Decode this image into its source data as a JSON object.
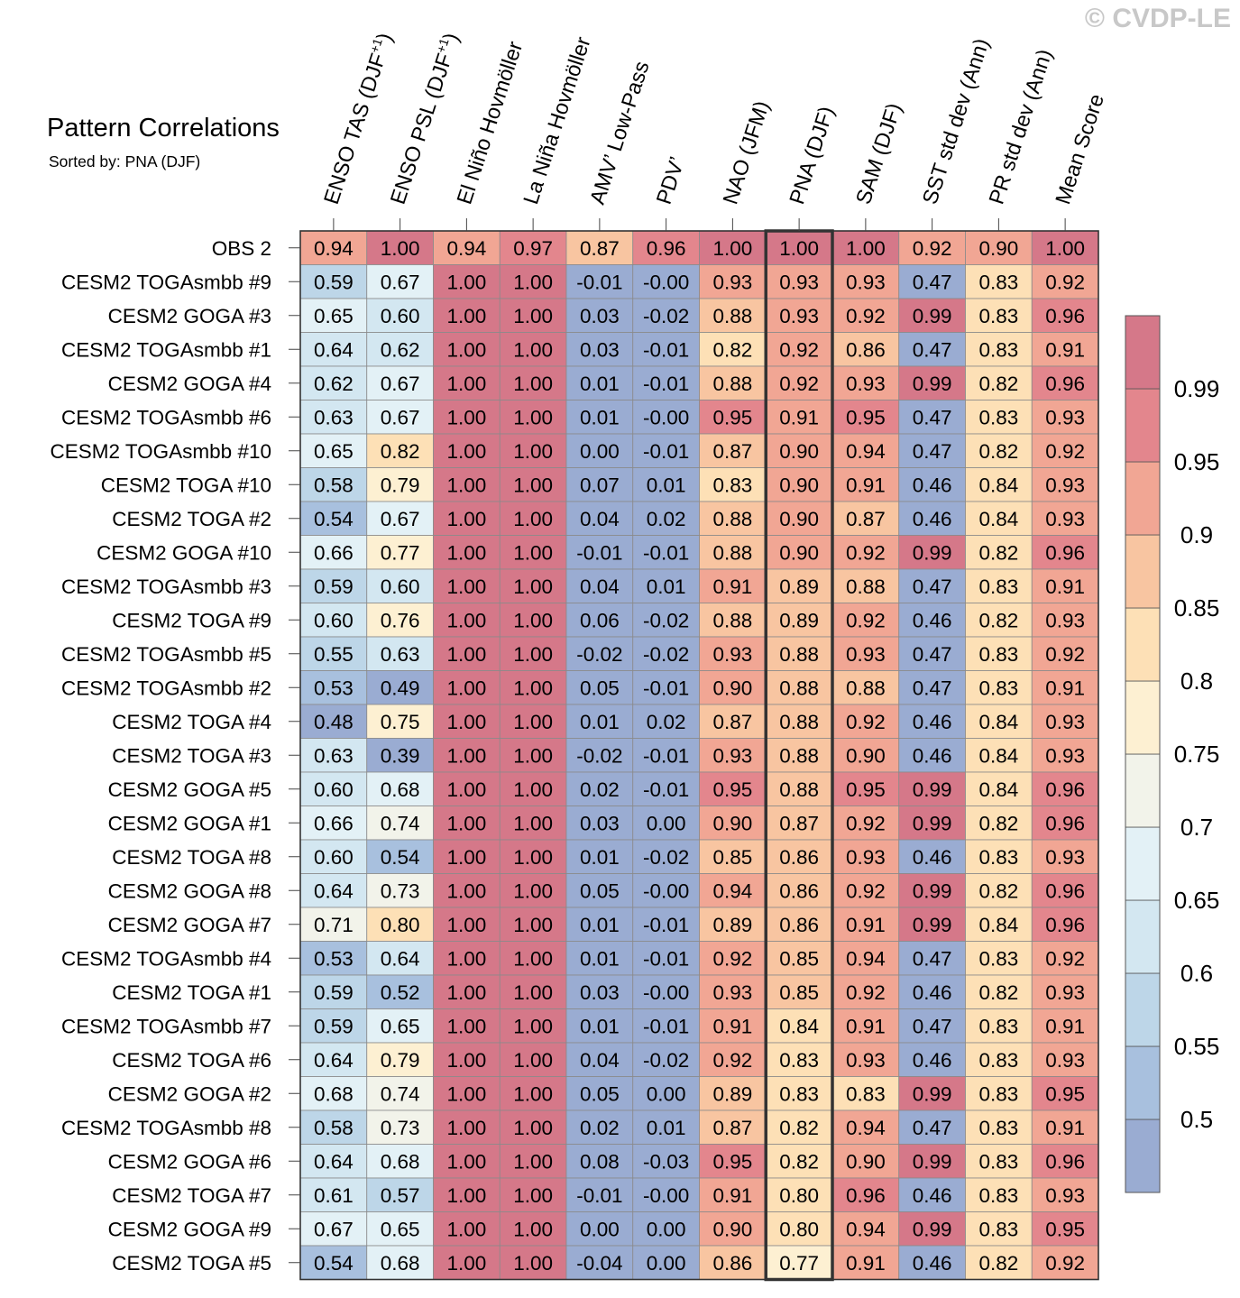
{
  "watermark": "© CVDP-LE",
  "chart_data": {
    "type": "heatmap",
    "title": "Pattern Correlations",
    "subtitle": "Sorted by: PNA (DJF)",
    "columns": [
      {
        "base": "ENSO TAS (DJF",
        "sup": "+1",
        "tail": ")"
      },
      {
        "base": "ENSO PSL (DJF",
        "sup": "+1",
        "tail": ")"
      },
      {
        "base": "El Niño Hovmöller"
      },
      {
        "base": "La Niña Hovmöller"
      },
      {
        "base": "AMV’ Low-Pass"
      },
      {
        "base": "PDV’"
      },
      {
        "base": "NAO (JFM)"
      },
      {
        "base": "PNA (DJF)"
      },
      {
        "base": "SAM (DJF)"
      },
      {
        "base": "SST std dev (Ann)"
      },
      {
        "base": "PR std dev (Ann)"
      },
      {
        "base": "Mean Score"
      }
    ],
    "highlight_column": 7,
    "rows": [
      {
        "label": "OBS 2",
        "values": [
          "0.94",
          "1.00",
          "0.94",
          "0.97",
          "0.87",
          "0.96",
          "1.00",
          "1.00",
          "1.00",
          "0.92",
          "0.90",
          "1.00"
        ]
      },
      {
        "label": "CESM2 TOGAsmbb #9",
        "values": [
          "0.59",
          "0.67",
          "1.00",
          "1.00",
          "-0.01",
          "-0.00",
          "0.93",
          "0.93",
          "0.93",
          "0.47",
          "0.83",
          "0.92"
        ]
      },
      {
        "label": "CESM2 GOGA #3",
        "values": [
          "0.65",
          "0.60",
          "1.00",
          "1.00",
          "0.03",
          "-0.02",
          "0.88",
          "0.93",
          "0.92",
          "0.99",
          "0.83",
          "0.96"
        ]
      },
      {
        "label": "CESM2 TOGAsmbb #1",
        "values": [
          "0.64",
          "0.62",
          "1.00",
          "1.00",
          "0.03",
          "-0.01",
          "0.82",
          "0.92",
          "0.86",
          "0.47",
          "0.83",
          "0.91"
        ]
      },
      {
        "label": "CESM2 GOGA #4",
        "values": [
          "0.62",
          "0.67",
          "1.00",
          "1.00",
          "0.01",
          "-0.01",
          "0.88",
          "0.92",
          "0.93",
          "0.99",
          "0.82",
          "0.96"
        ]
      },
      {
        "label": "CESM2 TOGAsmbb #6",
        "values": [
          "0.63",
          "0.67",
          "1.00",
          "1.00",
          "0.01",
          "-0.00",
          "0.95",
          "0.91",
          "0.95",
          "0.47",
          "0.83",
          "0.93"
        ]
      },
      {
        "label": "CESM2 TOGAsmbb #10",
        "values": [
          "0.65",
          "0.82",
          "1.00",
          "1.00",
          "0.00",
          "-0.01",
          "0.87",
          "0.90",
          "0.94",
          "0.47",
          "0.82",
          "0.92"
        ]
      },
      {
        "label": "CESM2 TOGA #10",
        "values": [
          "0.58",
          "0.79",
          "1.00",
          "1.00",
          "0.07",
          "0.01",
          "0.83",
          "0.90",
          "0.91",
          "0.46",
          "0.84",
          "0.93"
        ]
      },
      {
        "label": "CESM2 TOGA #2",
        "values": [
          "0.54",
          "0.67",
          "1.00",
          "1.00",
          "0.04",
          "0.02",
          "0.88",
          "0.90",
          "0.87",
          "0.46",
          "0.84",
          "0.93"
        ]
      },
      {
        "label": "CESM2 GOGA #10",
        "values": [
          "0.66",
          "0.77",
          "1.00",
          "1.00",
          "-0.01",
          "-0.01",
          "0.88",
          "0.90",
          "0.92",
          "0.99",
          "0.82",
          "0.96"
        ]
      },
      {
        "label": "CESM2 TOGAsmbb #3",
        "values": [
          "0.59",
          "0.60",
          "1.00",
          "1.00",
          "0.04",
          "0.01",
          "0.91",
          "0.89",
          "0.88",
          "0.47",
          "0.83",
          "0.91"
        ]
      },
      {
        "label": "CESM2 TOGA #9",
        "values": [
          "0.60",
          "0.76",
          "1.00",
          "1.00",
          "0.06",
          "-0.02",
          "0.88",
          "0.89",
          "0.92",
          "0.46",
          "0.82",
          "0.93"
        ]
      },
      {
        "label": "CESM2 TOGAsmbb #5",
        "values": [
          "0.55",
          "0.63",
          "1.00",
          "1.00",
          "-0.02",
          "-0.02",
          "0.93",
          "0.88",
          "0.93",
          "0.47",
          "0.83",
          "0.92"
        ]
      },
      {
        "label": "CESM2 TOGAsmbb #2",
        "values": [
          "0.53",
          "0.49",
          "1.00",
          "1.00",
          "0.05",
          "-0.01",
          "0.90",
          "0.88",
          "0.88",
          "0.47",
          "0.83",
          "0.91"
        ]
      },
      {
        "label": "CESM2 TOGA #4",
        "values": [
          "0.48",
          "0.75",
          "1.00",
          "1.00",
          "0.01",
          "0.02",
          "0.87",
          "0.88",
          "0.92",
          "0.46",
          "0.84",
          "0.93"
        ]
      },
      {
        "label": "CESM2 TOGA #3",
        "values": [
          "0.63",
          "0.39",
          "1.00",
          "1.00",
          "-0.02",
          "-0.01",
          "0.93",
          "0.88",
          "0.90",
          "0.46",
          "0.84",
          "0.93"
        ]
      },
      {
        "label": "CESM2 GOGA #5",
        "values": [
          "0.60",
          "0.68",
          "1.00",
          "1.00",
          "0.02",
          "-0.01",
          "0.95",
          "0.88",
          "0.95",
          "0.99",
          "0.84",
          "0.96"
        ]
      },
      {
        "label": "CESM2 GOGA #1",
        "values": [
          "0.66",
          "0.74",
          "1.00",
          "1.00",
          "0.03",
          "0.00",
          "0.90",
          "0.87",
          "0.92",
          "0.99",
          "0.82",
          "0.96"
        ]
      },
      {
        "label": "CESM2 TOGA #8",
        "values": [
          "0.60",
          "0.54",
          "1.00",
          "1.00",
          "0.01",
          "-0.02",
          "0.85",
          "0.86",
          "0.93",
          "0.46",
          "0.83",
          "0.93"
        ]
      },
      {
        "label": "CESM2 GOGA #8",
        "values": [
          "0.64",
          "0.73",
          "1.00",
          "1.00",
          "0.05",
          "-0.00",
          "0.94",
          "0.86",
          "0.92",
          "0.99",
          "0.82",
          "0.96"
        ]
      },
      {
        "label": "CESM2 GOGA #7",
        "values": [
          "0.71",
          "0.80",
          "1.00",
          "1.00",
          "0.01",
          "-0.01",
          "0.89",
          "0.86",
          "0.91",
          "0.99",
          "0.84",
          "0.96"
        ]
      },
      {
        "label": "CESM2 TOGAsmbb #4",
        "values": [
          "0.53",
          "0.64",
          "1.00",
          "1.00",
          "0.01",
          "-0.01",
          "0.92",
          "0.85",
          "0.94",
          "0.47",
          "0.83",
          "0.92"
        ]
      },
      {
        "label": "CESM2 TOGA #1",
        "values": [
          "0.59",
          "0.52",
          "1.00",
          "1.00",
          "0.03",
          "-0.00",
          "0.93",
          "0.85",
          "0.92",
          "0.46",
          "0.82",
          "0.93"
        ]
      },
      {
        "label": "CESM2 TOGAsmbb #7",
        "values": [
          "0.59",
          "0.65",
          "1.00",
          "1.00",
          "0.01",
          "-0.01",
          "0.91",
          "0.84",
          "0.91",
          "0.47",
          "0.83",
          "0.91"
        ]
      },
      {
        "label": "CESM2 TOGA #6",
        "values": [
          "0.64",
          "0.79",
          "1.00",
          "1.00",
          "0.04",
          "-0.02",
          "0.92",
          "0.83",
          "0.93",
          "0.46",
          "0.83",
          "0.93"
        ]
      },
      {
        "label": "CESM2 GOGA #2",
        "values": [
          "0.68",
          "0.74",
          "1.00",
          "1.00",
          "0.05",
          "0.00",
          "0.89",
          "0.83",
          "0.83",
          "0.99",
          "0.83",
          "0.95"
        ]
      },
      {
        "label": "CESM2 TOGAsmbb #8",
        "values": [
          "0.58",
          "0.73",
          "1.00",
          "1.00",
          "0.02",
          "0.01",
          "0.87",
          "0.82",
          "0.94",
          "0.47",
          "0.83",
          "0.91"
        ]
      },
      {
        "label": "CESM2 GOGA #6",
        "values": [
          "0.64",
          "0.68",
          "1.00",
          "1.00",
          "0.08",
          "-0.03",
          "0.95",
          "0.82",
          "0.90",
          "0.99",
          "0.83",
          "0.96"
        ]
      },
      {
        "label": "CESM2 TOGA #7",
        "values": [
          "0.61",
          "0.57",
          "1.00",
          "1.00",
          "-0.01",
          "-0.00",
          "0.91",
          "0.80",
          "0.96",
          "0.46",
          "0.83",
          "0.93"
        ]
      },
      {
        "label": "CESM2 GOGA #9",
        "values": [
          "0.67",
          "0.65",
          "1.00",
          "1.00",
          "0.00",
          "0.00",
          "0.90",
          "0.80",
          "0.94",
          "0.99",
          "0.83",
          "0.95"
        ]
      },
      {
        "label": "CESM2 TOGA #5",
        "values": [
          "0.54",
          "0.68",
          "1.00",
          "1.00",
          "-0.04",
          "0.00",
          "0.86",
          "0.77",
          "0.91",
          "0.46",
          "0.82",
          "0.92"
        ]
      }
    ],
    "colorbar": {
      "boundaries": [
        0.5,
        0.55,
        0.6,
        0.65,
        0.7,
        0.75,
        0.8,
        0.85,
        0.9,
        0.95,
        0.99
      ],
      "labels": [
        "0.5",
        "0.55",
        "0.6",
        "0.65",
        "0.7",
        "0.75",
        "0.8",
        "0.85",
        "0.9",
        "0.95",
        "0.99"
      ],
      "colors": [
        "#9aacd2",
        "#a8c0de",
        "#bdd6e8",
        "#d3e7f1",
        "#e3f1f6",
        "#f2f3ea",
        "#fdf0d2",
        "#fde0b6",
        "#f8c5a1",
        "#f1a694",
        "#e3868d",
        "#d57889"
      ]
    }
  }
}
